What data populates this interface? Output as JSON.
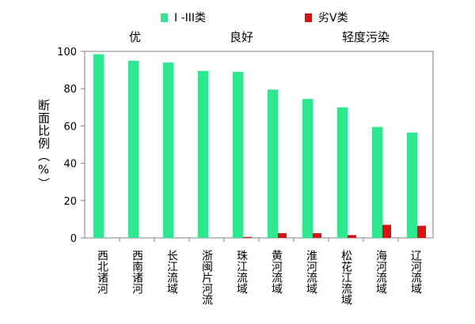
{
  "chart_data": {
    "type": "bar",
    "ylabel": "断面比例（%）",
    "ylim": [
      0,
      100
    ],
    "yticks": [
      "0",
      "20",
      "40",
      "60",
      "80",
      "100"
    ],
    "grid": false,
    "legend_position": "top",
    "categories": [
      "西北诸河",
      "西南诸河",
      "长江流域",
      "浙闽片河流",
      "珠江流域",
      "黄河流域",
      "淮河流域",
      "松花江流域",
      "海河流域",
      "辽河流域"
    ],
    "series": [
      {
        "name": "I -III类",
        "color": "#2ee88f",
        "values": [
          98.5,
          95,
          94,
          89.5,
          89,
          79.5,
          74.5,
          70,
          59.5,
          56.5
        ]
      },
      {
        "name": "劣V类",
        "color": "#e01010",
        "values": [
          0,
          0,
          0,
          0,
          0.5,
          2.5,
          2.5,
          1.5,
          7,
          6.5
        ]
      }
    ],
    "annotations": [
      "优",
      "良好",
      "轻度污染"
    ]
  }
}
